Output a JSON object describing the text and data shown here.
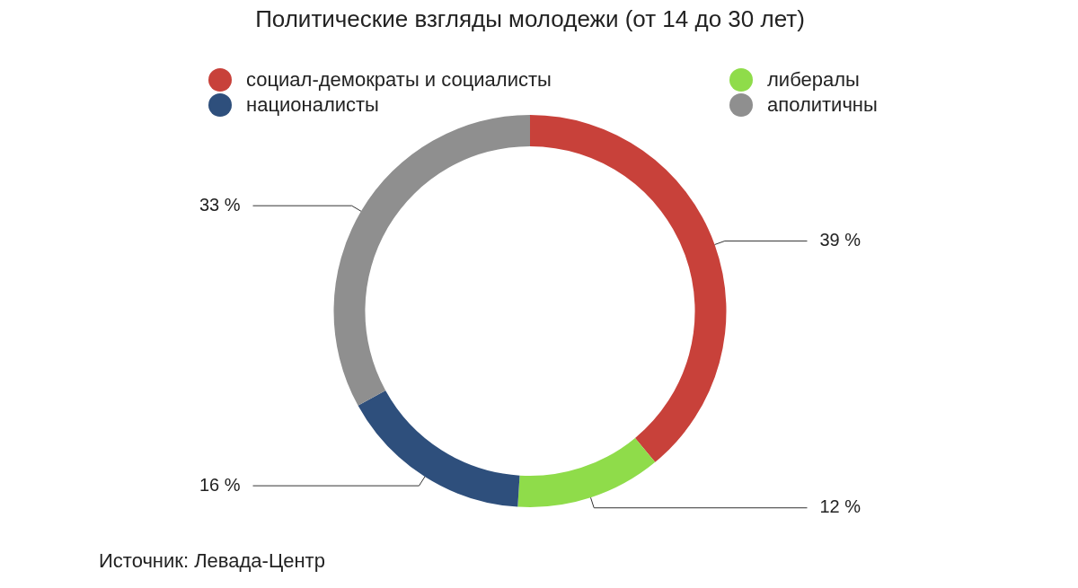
{
  "chart_data": {
    "type": "donut",
    "title": "Политические взгляды молодежи (от 14 до 30 лет)",
    "categories": [
      "социал-демократы и социалисты",
      "либералы",
      "националисты",
      "аполитичны"
    ],
    "values": [
      39,
      12,
      16,
      33
    ],
    "colors": [
      "#c8413a",
      "#8fdc4a",
      "#2e4f7c",
      "#8f8f8f"
    ],
    "value_labels": [
      "39 %",
      "12 %",
      "16 %",
      "33 %"
    ],
    "legend": "top",
    "annotations": [
      "Источник: Левада-Центр"
    ]
  }
}
